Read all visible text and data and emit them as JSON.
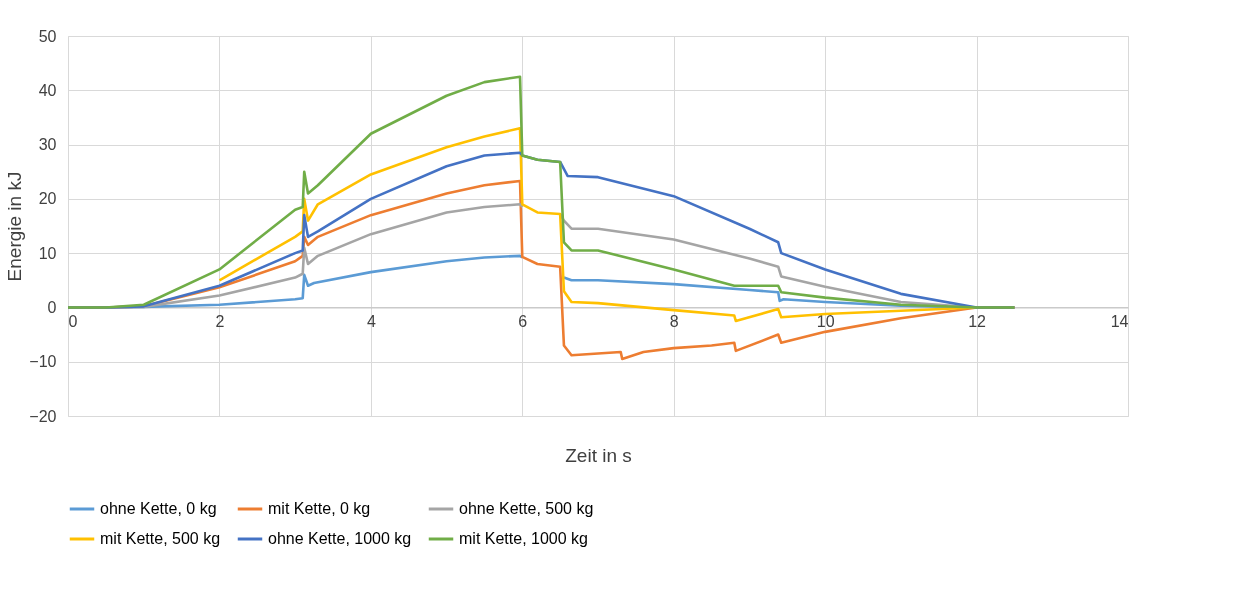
{
  "chart_data": {
    "type": "line",
    "xlabel": "Zeit in s",
    "ylabel": "Energie in kJ",
    "xlim": [
      0,
      14
    ],
    "xticks": [
      0,
      2,
      4,
      6,
      8,
      10,
      12,
      14
    ],
    "ylim": [
      -20,
      50
    ],
    "yticks": [
      -20,
      -10,
      0,
      10,
      20,
      30,
      40,
      50
    ],
    "grid": true,
    "legend": "bottom",
    "marker": "none",
    "line_style": "solid",
    "series": [
      {
        "name": "ohne Kette, 0 kg",
        "color": "#5b9bd5",
        "x": [
          0,
          0.5,
          1,
          2,
          3,
          3.1,
          3.12,
          3.17,
          3.25,
          4,
          5,
          5.5,
          5.97,
          6.0,
          6.2,
          6.5,
          6.55,
          6.65,
          7,
          8,
          9,
          9.38,
          9.4,
          9.45,
          10,
          11,
          12,
          12.5
        ],
        "values": [
          0,
          0,
          0.1,
          0.5,
          1.5,
          1.7,
          6,
          4,
          4.5,
          6.5,
          8.5,
          9.2,
          9.5,
          9.2,
          null,
          null,
          5.5,
          5,
          5,
          4.3,
          3.2,
          2.8,
          1.2,
          1.5,
          1,
          0.3,
          0,
          0
        ]
      },
      {
        "name": "mit Kette, 0 kg",
        "color": "#ed7d31",
        "x": [
          0,
          0.5,
          1,
          2,
          3,
          3.1,
          3.12,
          3.17,
          3.3,
          4,
          5,
          5.5,
          5.97,
          6.0,
          6.2,
          6.5,
          6.55,
          6.65,
          7,
          7.3,
          7.32,
          7.6,
          8,
          8.5,
          8.8,
          8.82,
          9.38,
          9.42,
          10,
          11,
          12,
          12.5
        ],
        "values": [
          0,
          0,
          0.2,
          3.7,
          8.5,
          9.5,
          13,
          11.5,
          13,
          17,
          21,
          22.5,
          23.3,
          9.3,
          8,
          7.5,
          -7,
          -8.8,
          -8.5,
          -8.2,
          -9.5,
          -8.2,
          -7.5,
          -7,
          -6.5,
          -8,
          -5,
          -6.5,
          -4.5,
          -2,
          0,
          0
        ]
      },
      {
        "name": "ohne Kette, 500 kg",
        "color": "#a5a5a5",
        "x": [
          0,
          0.5,
          1,
          2,
          3,
          3.1,
          3.12,
          3.17,
          3.3,
          4,
          5,
          5.5,
          5.97,
          6.0,
          6.2,
          6.5,
          6.55,
          6.65,
          7,
          8,
          9,
          9.38,
          9.42,
          10,
          11,
          12,
          12.5
        ],
        "values": [
          0,
          0,
          0.1,
          2.2,
          5.5,
          6.2,
          11,
          8,
          9.5,
          13.5,
          17.5,
          18.5,
          19,
          18.5,
          null,
          17.2,
          16,
          14.5,
          14.5,
          12.5,
          9,
          7.5,
          5.7,
          3.8,
          1,
          0,
          0
        ]
      },
      {
        "name": "mit Kette, 500 kg",
        "color": "#ffc000",
        "x": [
          0,
          0.5,
          1,
          2,
          3,
          3.1,
          3.12,
          3.17,
          3.3,
          4,
          5,
          5.5,
          5.97,
          6.0,
          6.2,
          6.5,
          6.55,
          6.65,
          7,
          8,
          8.8,
          8.82,
          9.38,
          9.42,
          10,
          11,
          12,
          12.5
        ],
        "values": [
          0,
          0,
          null,
          5,
          13,
          14,
          20,
          16,
          19,
          24.5,
          29.5,
          31.5,
          33,
          19,
          17.5,
          17.2,
          3,
          1,
          0.8,
          -0.5,
          -1.5,
          -2.5,
          -0.3,
          -1.8,
          -1.2,
          -0.6,
          0,
          0
        ]
      },
      {
        "name": "ohne Kette, 1000 kg",
        "color": "#4472c4",
        "x": [
          0,
          0.5,
          1,
          2,
          3,
          3.1,
          3.12,
          3.17,
          3.3,
          4,
          5,
          5.5,
          5.97,
          6.0,
          6.2,
          6.5,
          6.6,
          7,
          8,
          9,
          9.38,
          9.42,
          10,
          11,
          12,
          12.5
        ],
        "values": [
          0,
          0,
          0.2,
          4,
          10,
          10.5,
          17,
          13,
          14,
          20,
          26,
          28,
          28.5,
          28,
          27.2,
          26.8,
          24.2,
          24,
          20.5,
          14.5,
          12,
          10,
          7,
          2.5,
          0,
          0
        ]
      },
      {
        "name": "mit Kette, 1000 kg",
        "color": "#70ad47",
        "x": [
          0,
          0.5,
          1,
          2,
          3,
          3.1,
          3.12,
          3.17,
          3.3,
          4,
          5,
          5.5,
          5.97,
          6.0,
          6.2,
          6.5,
          6.55,
          6.65,
          7,
          8,
          8.8,
          9.38,
          9.42,
          10,
          11,
          12,
          12.5
        ],
        "values": [
          0,
          0,
          0.5,
          7,
          18,
          18.5,
          25,
          21,
          22.5,
          32,
          39,
          41.5,
          42.5,
          28,
          27.2,
          26.8,
          12,
          10.5,
          10.5,
          7,
          4,
          4,
          2.8,
          1.8,
          0.5,
          0,
          0
        ]
      }
    ]
  }
}
